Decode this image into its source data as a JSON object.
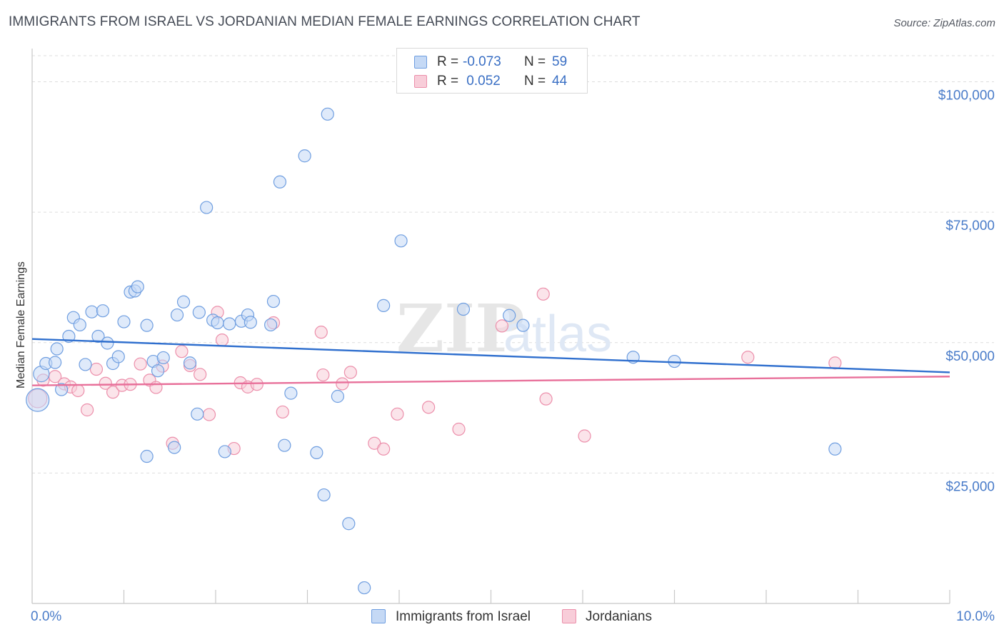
{
  "header": {
    "title": "IMMIGRANTS FROM ISRAEL VS JORDANIAN MEDIAN FEMALE EARNINGS CORRELATION CHART",
    "source": "Source: ZipAtlas.com"
  },
  "watermark": "ZIPatlas",
  "legend": {
    "rows": [
      {
        "r_label": "R = ",
        "r_value": "-0.073",
        "n_label": "N = ",
        "n_value": "59"
      },
      {
        "r_label": "R = ",
        "r_value": " 0.052",
        "n_label": "N = ",
        "n_value": "44"
      }
    ]
  },
  "colors": {
    "blue_fill": "#c5d9f5",
    "blue_stroke": "#6f9ee0",
    "blue_line": "#2f6fce",
    "pink_fill": "#f8cdd9",
    "pink_stroke": "#ec8fab",
    "pink_line": "#e8709a",
    "tick_text": "#4a7cc9",
    "grid": "#dddddd"
  },
  "chart_data": {
    "type": "scatter",
    "title": "IMMIGRANTS FROM ISRAEL VS JORDANIAN MEDIAN FEMALE EARNINGS CORRELATION CHART",
    "xlabel": "",
    "ylabel": "Median Female Earnings",
    "xlim": [
      0,
      10
    ],
    "ylim": [
      0,
      105000
    ],
    "x_tick_labels": {
      "left": "0.0%",
      "right": "10.0%"
    },
    "y_ticks": [
      {
        "value": 25000,
        "label": "$25,000"
      },
      {
        "value": 50000,
        "label": "$50,000"
      },
      {
        "value": 75000,
        "label": "$75,000"
      },
      {
        "value": 100000,
        "label": "$100,000"
      }
    ],
    "grid": true,
    "series": [
      {
        "name": "Immigrants from Israel",
        "color": "blue",
        "trend": {
          "x": [
            0,
            10
          ],
          "y": [
            50700,
            44300
          ]
        },
        "points": [
          {
            "x": 0.06,
            "y": 39000,
            "size": 16
          },
          {
            "x": 0.1,
            "y": 44000,
            "size": 11
          },
          {
            "x": 0.15,
            "y": 46000
          },
          {
            "x": 0.25,
            "y": 46200
          },
          {
            "x": 0.27,
            "y": 48800
          },
          {
            "x": 0.32,
            "y": 41000
          },
          {
            "x": 0.4,
            "y": 51200
          },
          {
            "x": 0.45,
            "y": 54800
          },
          {
            "x": 0.52,
            "y": 53400
          },
          {
            "x": 0.58,
            "y": 45800
          },
          {
            "x": 0.65,
            "y": 55900
          },
          {
            "x": 0.72,
            "y": 51200
          },
          {
            "x": 0.77,
            "y": 56100
          },
          {
            "x": 0.82,
            "y": 49900
          },
          {
            "x": 0.88,
            "y": 46000
          },
          {
            "x": 0.94,
            "y": 47300
          },
          {
            "x": 1.0,
            "y": 54000
          },
          {
            "x": 1.07,
            "y": 59700
          },
          {
            "x": 1.12,
            "y": 59900
          },
          {
            "x": 1.15,
            "y": 60700
          },
          {
            "x": 1.25,
            "y": 53300
          },
          {
            "x": 1.32,
            "y": 46400
          },
          {
            "x": 1.37,
            "y": 44600
          },
          {
            "x": 1.43,
            "y": 47100
          },
          {
            "x": 1.58,
            "y": 55300
          },
          {
            "x": 1.65,
            "y": 57800
          },
          {
            "x": 1.72,
            "y": 46100
          },
          {
            "x": 1.82,
            "y": 55800
          },
          {
            "x": 1.9,
            "y": 75900
          },
          {
            "x": 1.97,
            "y": 54300
          },
          {
            "x": 2.02,
            "y": 53800
          },
          {
            "x": 2.15,
            "y": 53600
          },
          {
            "x": 2.28,
            "y": 54100
          },
          {
            "x": 2.35,
            "y": 55300
          },
          {
            "x": 2.38,
            "y": 53900
          },
          {
            "x": 2.6,
            "y": 53400
          },
          {
            "x": 2.63,
            "y": 57900
          },
          {
            "x": 2.7,
            "y": 80800
          },
          {
            "x": 2.82,
            "y": 40300
          },
          {
            "x": 2.97,
            "y": 85800
          },
          {
            "x": 3.22,
            "y": 93800
          },
          {
            "x": 3.33,
            "y": 39700
          },
          {
            "x": 1.8,
            "y": 36300
          },
          {
            "x": 1.25,
            "y": 28200
          },
          {
            "x": 1.55,
            "y": 29900
          },
          {
            "x": 2.1,
            "y": 29100
          },
          {
            "x": 2.75,
            "y": 30300
          },
          {
            "x": 3.1,
            "y": 28900
          },
          {
            "x": 3.18,
            "y": 20800
          },
          {
            "x": 3.45,
            "y": 15300
          },
          {
            "x": 3.62,
            "y": 3000
          },
          {
            "x": 3.83,
            "y": 57100
          },
          {
            "x": 4.02,
            "y": 69500
          },
          {
            "x": 4.7,
            "y": 56400
          },
          {
            "x": 5.2,
            "y": 55200
          },
          {
            "x": 5.35,
            "y": 53300
          },
          {
            "x": 6.55,
            "y": 47200
          },
          {
            "x": 7.0,
            "y": 46400
          },
          {
            "x": 8.75,
            "y": 29600
          }
        ]
      },
      {
        "name": "Jordanians",
        "color": "pink",
        "trend": {
          "x": [
            0,
            10
          ],
          "y": [
            41800,
            43500
          ]
        },
        "points": [
          {
            "x": 0.06,
            "y": 39300,
            "size": 13
          },
          {
            "x": 0.12,
            "y": 42800
          },
          {
            "x": 0.25,
            "y": 43500
          },
          {
            "x": 0.35,
            "y": 42100
          },
          {
            "x": 0.42,
            "y": 41500
          },
          {
            "x": 0.5,
            "y": 40800
          },
          {
            "x": 0.6,
            "y": 37100
          },
          {
            "x": 0.7,
            "y": 44900
          },
          {
            "x": 0.8,
            "y": 42200
          },
          {
            "x": 0.88,
            "y": 40500
          },
          {
            "x": 0.98,
            "y": 41800
          },
          {
            "x": 1.07,
            "y": 42000
          },
          {
            "x": 1.18,
            "y": 45900
          },
          {
            "x": 1.28,
            "y": 42800
          },
          {
            "x": 1.35,
            "y": 41400
          },
          {
            "x": 1.42,
            "y": 45500
          },
          {
            "x": 1.53,
            "y": 30700
          },
          {
            "x": 1.63,
            "y": 48300
          },
          {
            "x": 1.72,
            "y": 45600
          },
          {
            "x": 1.83,
            "y": 43900
          },
          {
            "x": 1.93,
            "y": 36200
          },
          {
            "x": 2.02,
            "y": 55800
          },
          {
            "x": 2.07,
            "y": 50500
          },
          {
            "x": 2.2,
            "y": 29700
          },
          {
            "x": 2.27,
            "y": 42300
          },
          {
            "x": 2.35,
            "y": 41500
          },
          {
            "x": 2.45,
            "y": 42000
          },
          {
            "x": 2.63,
            "y": 53800
          },
          {
            "x": 2.73,
            "y": 36700
          },
          {
            "x": 3.15,
            "y": 52000
          },
          {
            "x": 3.17,
            "y": 43800
          },
          {
            "x": 3.38,
            "y": 42100
          },
          {
            "x": 3.47,
            "y": 44300
          },
          {
            "x": 3.73,
            "y": 30700
          },
          {
            "x": 3.83,
            "y": 29600
          },
          {
            "x": 3.98,
            "y": 36300
          },
          {
            "x": 4.32,
            "y": 37600
          },
          {
            "x": 4.65,
            "y": 33400
          },
          {
            "x": 5.12,
            "y": 53200
          },
          {
            "x": 5.57,
            "y": 59300
          },
          {
            "x": 5.6,
            "y": 39200
          },
          {
            "x": 6.02,
            "y": 32100
          },
          {
            "x": 7.8,
            "y": 47200
          },
          {
            "x": 8.75,
            "y": 46100
          }
        ]
      }
    ]
  },
  "bottom_legend": {
    "items": [
      {
        "label": "Immigrants from Israel"
      },
      {
        "label": "Jordanians"
      }
    ]
  }
}
